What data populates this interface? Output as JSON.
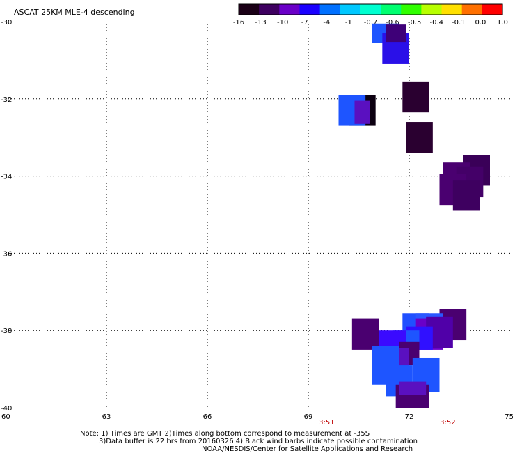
{
  "chart_data": {
    "type": "heatmap",
    "title": "ASCAT 25KM MLE-4 descending",
    "xlim": [
      60,
      75
    ],
    "ylim": [
      -40,
      -30
    ],
    "x_ticks": [
      "60",
      "63",
      "66",
      "69",
      "72",
      "75"
    ],
    "x_tick_values": [
      60,
      63,
      66,
      69,
      72,
      75
    ],
    "y_ticks": [
      "-30",
      "-32",
      "-34",
      "-36",
      "-38",
      "-40"
    ],
    "y_tick_values": [
      -30,
      -32,
      -34,
      -36,
      -38,
      -40
    ],
    "grid": true,
    "colorbar": {
      "labels": [
        "-16",
        "-13",
        "-10",
        "-7",
        "-4",
        "-1",
        "-0.7",
        "-0.6",
        "-0.5",
        "-0.4",
        "-0.1",
        "0.0",
        "1.0"
      ],
      "colors": [
        "#1a0016",
        "#3e0060",
        "#6a00c8",
        "#1a00ff",
        "#0070ff",
        "#00c8ff",
        "#00ffd0",
        "#00ff70",
        "#30ff00",
        "#b8ff00",
        "#ffe000",
        "#ff7000",
        "#ff0000"
      ]
    },
    "time_labels": [
      {
        "text": "3:51",
        "x": 71.2
      },
      {
        "text": "3:52",
        "x": 74.8
      }
    ],
    "cells": [
      {
        "lon": 71.3,
        "lat": -30.3,
        "w": 0.8,
        "h": 0.5,
        "color": "#1e55ff"
      },
      {
        "lon": 71.6,
        "lat": -30.7,
        "w": 0.8,
        "h": 0.8,
        "color": "#2a10e8"
      },
      {
        "lon": 71.6,
        "lat": -30.3,
        "w": 0.6,
        "h": 0.45,
        "color": "#3e0078"
      },
      {
        "lon": 72.2,
        "lat": -31.95,
        "w": 0.8,
        "h": 0.8,
        "color": "#2a0030"
      },
      {
        "lon": 70.6,
        "lat": -32.3,
        "w": 0.8,
        "h": 0.8,
        "color": "#0c0010"
      },
      {
        "lon": 70.3,
        "lat": -32.3,
        "w": 0.8,
        "h": 0.8,
        "color": "#1e55ff"
      },
      {
        "lon": 70.6,
        "lat": -32.35,
        "w": 0.45,
        "h": 0.6,
        "color": "#5a10c0"
      },
      {
        "lon": 72.3,
        "lat": -33.0,
        "w": 0.8,
        "h": 0.8,
        "color": "#2a0030"
      },
      {
        "lon": 74.0,
        "lat": -33.85,
        "w": 0.8,
        "h": 0.8,
        "color": "#3a0058"
      },
      {
        "lon": 73.4,
        "lat": -34.05,
        "w": 0.8,
        "h": 0.8,
        "color": "#4a0070"
      },
      {
        "lon": 73.8,
        "lat": -34.15,
        "w": 0.8,
        "h": 0.8,
        "color": "#440068"
      },
      {
        "lon": 73.3,
        "lat": -34.35,
        "w": 0.8,
        "h": 0.8,
        "color": "#4a0070"
      },
      {
        "lon": 73.7,
        "lat": -34.5,
        "w": 0.8,
        "h": 0.8,
        "color": "#3e0060"
      },
      {
        "lon": 73.3,
        "lat": -37.85,
        "w": 0.8,
        "h": 0.8,
        "color": "#4a0070"
      },
      {
        "lon": 72.2,
        "lat": -37.95,
        "w": 0.8,
        "h": 0.8,
        "color": "#2050ff"
      },
      {
        "lon": 72.6,
        "lat": -37.95,
        "w": 0.8,
        "h": 0.8,
        "color": "#2a58ff"
      },
      {
        "lon": 72.6,
        "lat": -38.1,
        "w": 0.8,
        "h": 0.8,
        "color": "#6a00c8"
      },
      {
        "lon": 72.9,
        "lat": -38.05,
        "w": 0.8,
        "h": 0.8,
        "color": "#5000a8"
      },
      {
        "lon": 70.7,
        "lat": -38.1,
        "w": 0.8,
        "h": 0.8,
        "color": "#4a0070"
      },
      {
        "lon": 72.3,
        "lat": -38.2,
        "w": 0.8,
        "h": 0.6,
        "color": "#3010ff"
      },
      {
        "lon": 71.9,
        "lat": -38.4,
        "w": 0.8,
        "h": 0.8,
        "color": "#1e55ff"
      },
      {
        "lon": 71.5,
        "lat": -38.4,
        "w": 0.8,
        "h": 0.8,
        "color": "#3a0aff"
      },
      {
        "lon": 72.0,
        "lat": -38.6,
        "w": 0.6,
        "h": 0.6,
        "color": "#4a0070"
      },
      {
        "lon": 71.6,
        "lat": -38.85,
        "w": 0.8,
        "h": 0.8,
        "color": "#5a10c0"
      },
      {
        "lon": 71.3,
        "lat": -38.9,
        "w": 0.8,
        "h": 1.0,
        "color": "#1e55ff"
      },
      {
        "lon": 71.7,
        "lat": -39.3,
        "w": 0.8,
        "h": 0.8,
        "color": "#1e55ff"
      },
      {
        "lon": 72.5,
        "lat": -39.15,
        "w": 0.8,
        "h": 0.9,
        "color": "#1e55ff"
      },
      {
        "lon": 72.1,
        "lat": -39.7,
        "w": 1.0,
        "h": 0.6,
        "color": "#4a0070"
      },
      {
        "lon": 72.1,
        "lat": -39.5,
        "w": 0.8,
        "h": 0.35,
        "color": "#5a10c0"
      }
    ]
  },
  "notes": {
    "line1": "Note: 1) Times are GMT 2)Times along bottom correspond to measurement at -35S",
    "line2": "3)Data buffer is 22 hrs from 20160326 4) Black wind barbs indicate possible contamination",
    "line3": "NOAA/NESDIS/Center for Satellite Applications and Research"
  }
}
